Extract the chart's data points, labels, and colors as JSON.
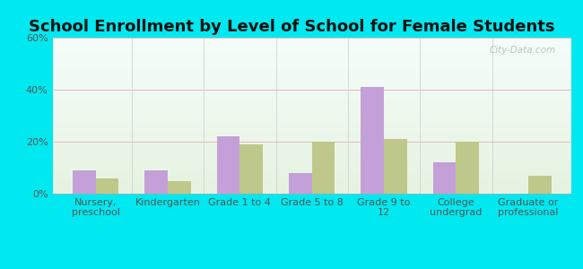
{
  "title": "School Enrollment by Level of School for Female Students",
  "categories": [
    "Nursery,\npreschool",
    "Kindergarten",
    "Grade 1 to 4",
    "Grade 5 to 8",
    "Grade 9 to\n12",
    "College\nundergrad",
    "Graduate or\nprofessional"
  ],
  "doylestown": [
    9,
    9,
    22,
    8,
    41,
    12,
    0
  ],
  "ohio": [
    6,
    5,
    19,
    20,
    21,
    20,
    7
  ],
  "doylestown_color": "#c4a0d8",
  "ohio_color": "#bec88a",
  "background_outer": "#00e8f0",
  "ylim": [
    0,
    60
  ],
  "yticks": [
    0,
    20,
    40,
    60
  ],
  "ytick_labels": [
    "0%",
    "20%",
    "40%",
    "60%"
  ],
  "grid_color": "#ddaaaa",
  "title_fontsize": 13,
  "tick_fontsize": 8,
  "legend_fontsize": 9,
  "bar_width": 0.32,
  "watermark": "City-Data.com"
}
